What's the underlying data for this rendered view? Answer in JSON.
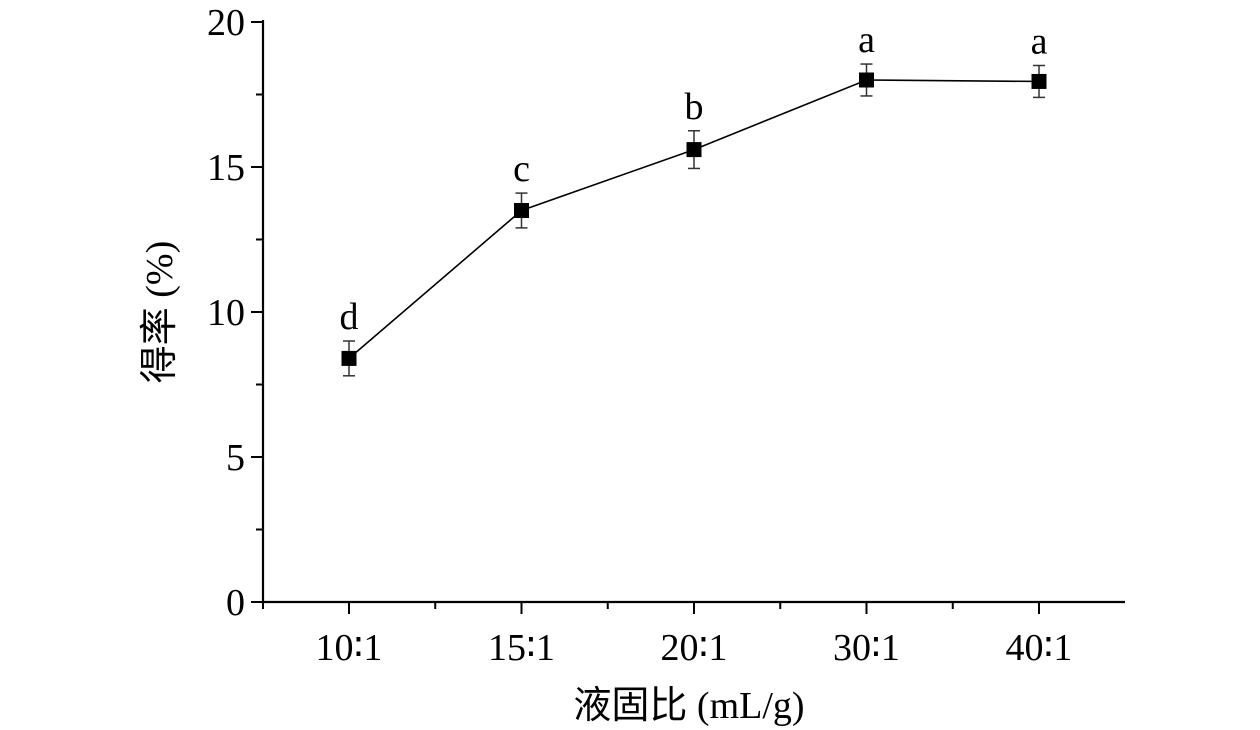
{
  "chart_data": {
    "type": "line",
    "categories": [
      "10∶1",
      "15∶1",
      "20∶1",
      "30∶1",
      "40∶1"
    ],
    "series": [
      {
        "values": [
          8.4,
          13.5,
          15.6,
          18.0,
          17.95
        ],
        "errors": [
          0.6,
          0.6,
          0.65,
          0.55,
          0.55
        ],
        "significance_labels": [
          "d",
          "c",
          "b",
          "a",
          "a"
        ]
      }
    ],
    "xlabel": "液固比 (mL/g)",
    "ylabel": "得率 (%)",
    "ylim": [
      0,
      20
    ],
    "yticks": [
      0,
      5,
      10,
      15,
      20
    ],
    "yticks_minor_step": 2.5,
    "grid": false,
    "marker": "square",
    "legend": "none",
    "color": "#000000"
  }
}
